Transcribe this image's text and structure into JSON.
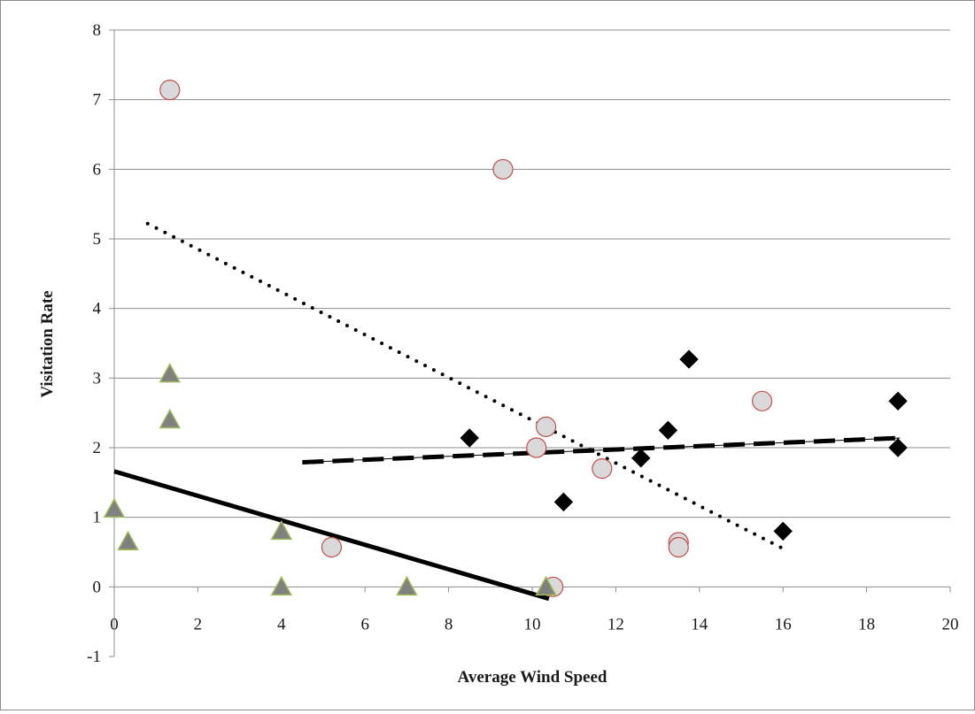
{
  "chart_data": {
    "type": "scatter",
    "title": "",
    "xlabel": "Average Wind Speed",
    "ylabel": "Visitation Rate",
    "xlim": [
      0,
      20
    ],
    "ylim": [
      -1,
      8
    ],
    "x_ticks": [
      "0",
      "2",
      "4",
      "6",
      "8",
      "10",
      "12",
      "14",
      "16",
      "18",
      "20"
    ],
    "y_ticks": [
      "-1",
      "0",
      "1",
      "2",
      "3",
      "4",
      "5",
      "6",
      "7",
      "8"
    ],
    "grid": "horizontal",
    "legend": "none",
    "series": [
      {
        "marker": "circle",
        "color": "#d9d9d9",
        "edge_color": "#c0504d",
        "points": [
          [
            1.33,
            7.14
          ],
          [
            9.3,
            6.0
          ],
          [
            10.33,
            2.3
          ],
          [
            10.1,
            2.0
          ],
          [
            11.67,
            1.7
          ],
          [
            15.5,
            2.67
          ],
          [
            13.5,
            0.64
          ],
          [
            13.5,
            0.57
          ],
          [
            5.2,
            0.57
          ],
          [
            10.5,
            0.0
          ]
        ]
      },
      {
        "marker": "diamond",
        "color": "#000000",
        "edge_color": "#000000",
        "points": [
          [
            8.5,
            2.14
          ],
          [
            10.75,
            1.22
          ],
          [
            12.6,
            1.85
          ],
          [
            13.25,
            2.25
          ],
          [
            13.75,
            3.27
          ],
          [
            16.0,
            0.8
          ],
          [
            18.75,
            2.67
          ],
          [
            18.75,
            2.0
          ]
        ]
      },
      {
        "marker": "triangle",
        "color": "#808080",
        "edge_color": "#9bbb59",
        "points": [
          [
            0.0,
            1.12
          ],
          [
            0.33,
            0.65
          ],
          [
            1.33,
            3.06
          ],
          [
            1.33,
            2.4
          ],
          [
            4.0,
            0.8
          ],
          [
            4.0,
            0.0
          ],
          [
            7.0,
            0.0
          ],
          [
            10.33,
            0.0
          ]
        ]
      }
    ],
    "trendlines": [
      {
        "style": "dotted",
        "color": "#000000",
        "x": [
          0.8,
          16.0
        ],
        "y": [
          5.22,
          0.55
        ]
      },
      {
        "style": "dashed",
        "color": "#000000",
        "x": [
          4.5,
          18.8
        ],
        "y": [
          1.79,
          2.14
        ]
      },
      {
        "style": "solid",
        "color": "#000000",
        "x": [
          0.0,
          10.4
        ],
        "y": [
          1.66,
          -0.17
        ]
      }
    ]
  }
}
